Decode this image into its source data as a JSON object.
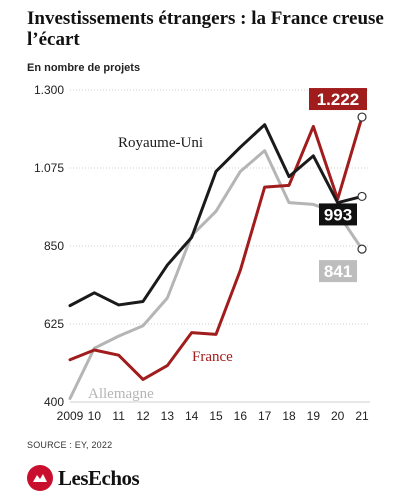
{
  "header": {
    "title": "Investissements étrangers : la France creuse l’écart",
    "subtitle": "En nombre de projets"
  },
  "footer": {
    "source": "SOURCE : EY, 2022",
    "logo_text": "LesEchos"
  },
  "chart_data": {
    "type": "line",
    "title": "Investissements étrangers : la France creuse l’écart",
    "ylabel": "En nombre de projets",
    "xlabel": "",
    "ylim": [
      400,
      1300
    ],
    "yticks": [
      400,
      625,
      850,
      1075,
      1300
    ],
    "ytick_labels": [
      "400",
      "625",
      "850",
      "1.075",
      "1.300"
    ],
    "x": [
      2009,
      2010,
      2011,
      2012,
      2013,
      2014,
      2015,
      2016,
      2017,
      2018,
      2019,
      2020,
      2021
    ],
    "xtick_labels": [
      "2009",
      "10",
      "11",
      "12",
      "13",
      "14",
      "15",
      "16",
      "17",
      "18",
      "19",
      "20",
      "21"
    ],
    "grid": "horizontal",
    "series": [
      {
        "name": "Allemagne",
        "color": "#b5b5b5",
        "values": [
          410,
          555,
          590,
          620,
          700,
          880,
          950,
          1065,
          1125,
          975,
          970,
          945,
          841
        ],
        "end_label": "841"
      },
      {
        "name": "France",
        "color": "#a11c1c",
        "values": [
          522,
          550,
          535,
          465,
          505,
          600,
          595,
          780,
          1020,
          1025,
          1195,
          985,
          1222
        ],
        "end_label": "1.222"
      },
      {
        "name": "Royaume-Uni",
        "color": "#1a1a1a",
        "values": [
          678,
          715,
          680,
          690,
          795,
          875,
          1065,
          1135,
          1200,
          1050,
          1110,
          975,
          993
        ],
        "end_label": "993"
      }
    ]
  }
}
